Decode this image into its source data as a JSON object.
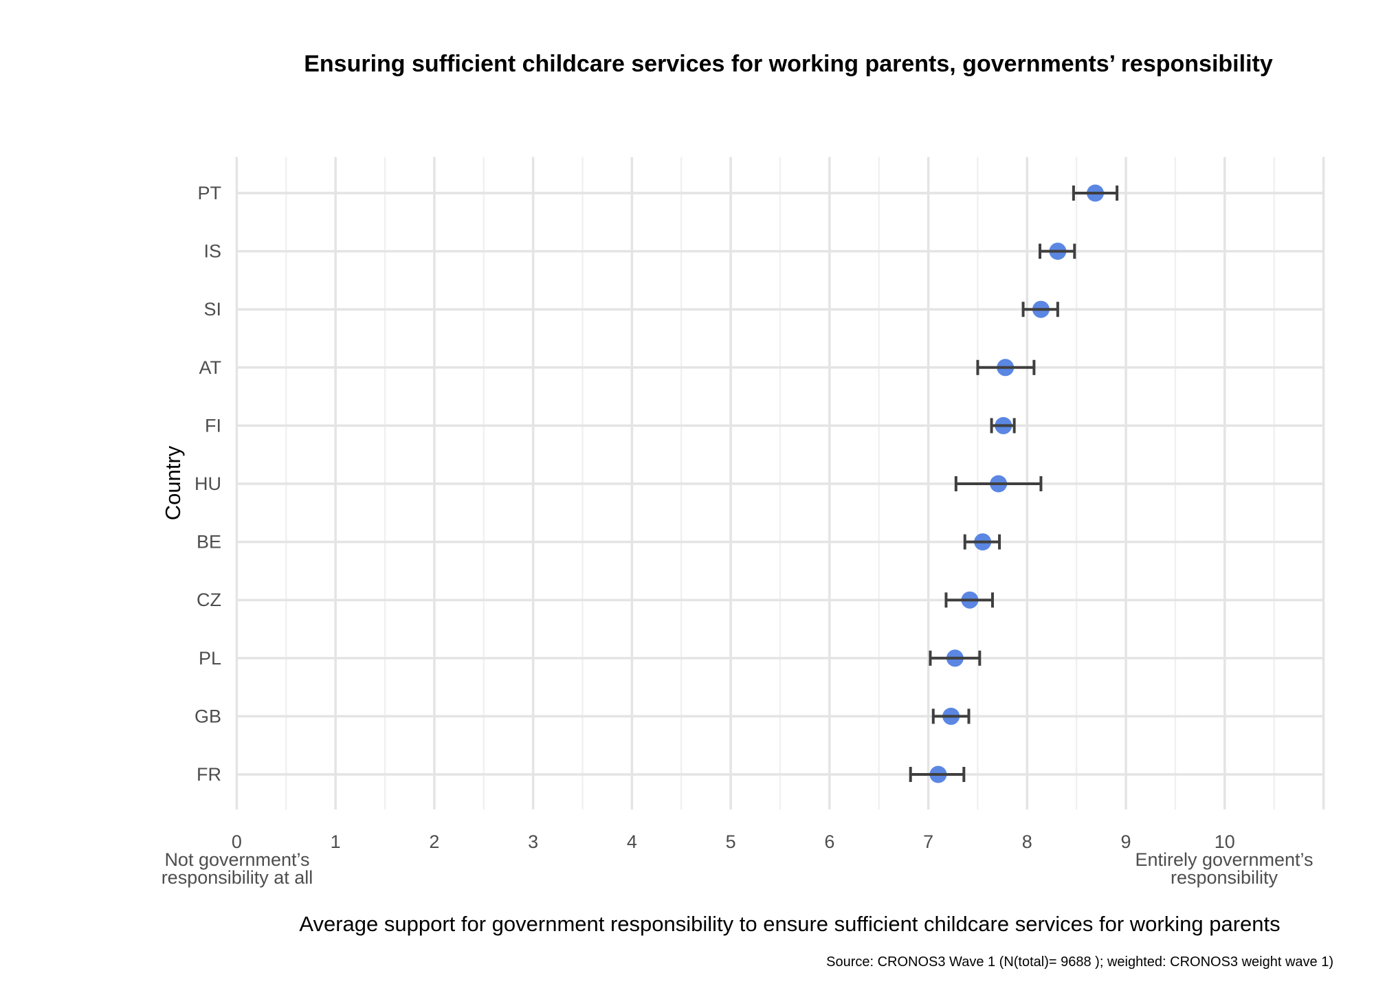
{
  "title": "Ensuring sufficient childcare services for working parents, governments’ responsibility",
  "chart_data": {
    "type": "scatter",
    "variant": "horizontal dot plot with 95% confidence-interval error bars",
    "title": "Ensuring sufficient childcare services for working parents, governments’ responsibility",
    "ylabel": "Country",
    "xlabel": "Average support for government responsibility to ensure sufficient childcare services for working parents",
    "caption": "Source: CRONOS3 Wave 1 (N(total)= 9688 ); weighted: CRONOS3 weight wave 1)",
    "categories": [
      "PT",
      "IS",
      "SI",
      "AT",
      "FI",
      "HU",
      "BE",
      "CZ",
      "PL",
      "GB",
      "FR"
    ],
    "series": [
      {
        "name": "Average support (0-10)",
        "values": [
          8.69,
          8.31,
          8.14,
          7.78,
          7.76,
          7.71,
          7.55,
          7.42,
          7.27,
          7.23,
          7.1
        ],
        "ci_low": [
          8.47,
          8.13,
          7.96,
          7.5,
          7.64,
          7.28,
          7.37,
          7.18,
          7.02,
          7.05,
          6.82
        ],
        "ci_high": [
          8.91,
          8.48,
          8.31,
          8.07,
          7.87,
          8.14,
          7.72,
          7.65,
          7.52,
          7.41,
          7.36
        ]
      }
    ],
    "x_ticks": [
      0,
      1,
      2,
      3,
      4,
      5,
      6,
      7,
      8,
      9,
      10
    ],
    "xlim": [
      0,
      11
    ],
    "grid": "major and minor vertical gridlines (0.5 steps), horizontal gridline per category",
    "legend": "none",
    "x_min_label_line1": "Not government’s",
    "x_min_label_line2": "responsibility at all",
    "x_max_label_line1": "Entirely government’s",
    "x_max_label_line2": "responsibility",
    "colors": {
      "point": "#5b87e3",
      "error_bar": "#3f3f3f",
      "grid_major": "#e4e4e4",
      "grid_minor": "#efefef",
      "axis_text": "#4d4d4d",
      "title_text": "#000000",
      "background": "#ffffff"
    }
  }
}
